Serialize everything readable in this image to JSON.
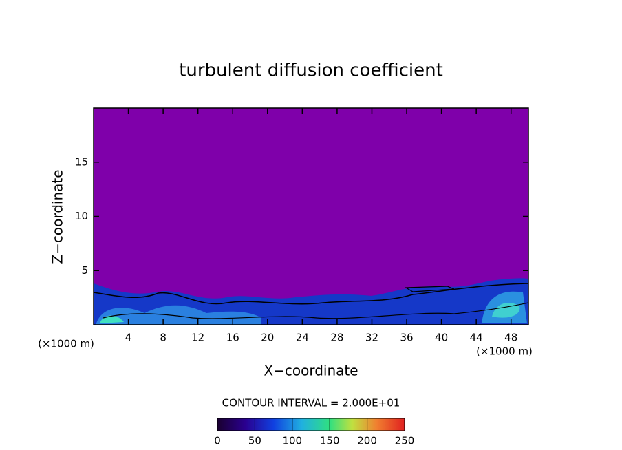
{
  "chart_data": {
    "type": "contour",
    "title": "turbulent diffusion coefficient",
    "x_label": "X−coordinate",
    "y_label": "Z−coordinate",
    "x_unit_label": "(×1000 m)",
    "y_unit_label": "(×1000 m)",
    "contour_interval_label": "CONTOUR INTERVAL = 2.000E+01",
    "xlim": [
      0,
      50
    ],
    "xticks": [
      4,
      8,
      12,
      16,
      20,
      24,
      28,
      32,
      36,
      40,
      44,
      48
    ],
    "ylim": [
      0,
      20
    ],
    "yticks": [
      5,
      10,
      15
    ],
    "colorbar": {
      "lim": [
        0,
        250
      ],
      "ticks": [
        0,
        50,
        100,
        150,
        200,
        250
      ]
    }
  }
}
